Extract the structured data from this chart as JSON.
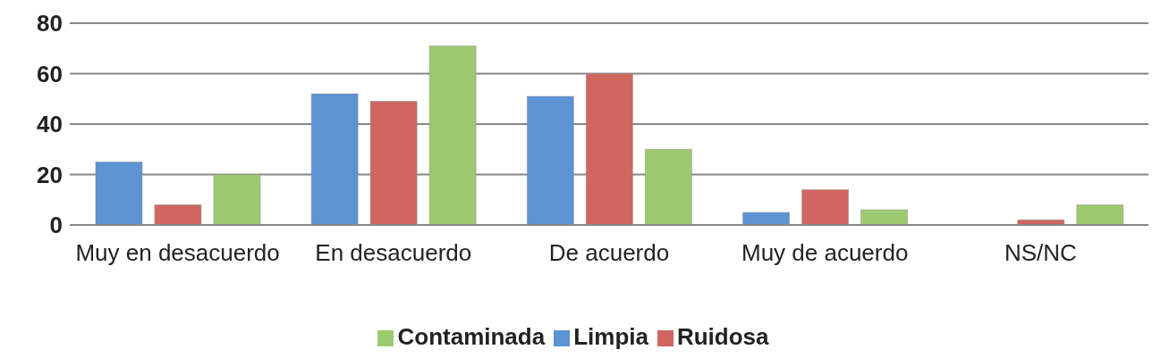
{
  "chart_data": {
    "type": "bar",
    "categories": [
      "Muy en desacuerdo",
      "En desacuerdo",
      "De acuerdo",
      "Muy de acuerdo",
      "NS/NC"
    ],
    "series": [
      {
        "name": "Limpia",
        "color": "#5b93d3",
        "values": [
          25,
          52,
          51,
          5,
          0
        ]
      },
      {
        "name": "Ruidosa",
        "color": "#d0665f",
        "values": [
          8,
          49,
          60,
          14,
          2
        ]
      },
      {
        "name": "Contaminada",
        "color": "#9dca6e",
        "values": [
          20,
          71,
          30,
          6,
          8
        ]
      }
    ],
    "ylim": [
      0,
      80
    ],
    "yticks": [
      0,
      20,
      40,
      60,
      80
    ],
    "grid": "y",
    "legend": "bottom"
  }
}
